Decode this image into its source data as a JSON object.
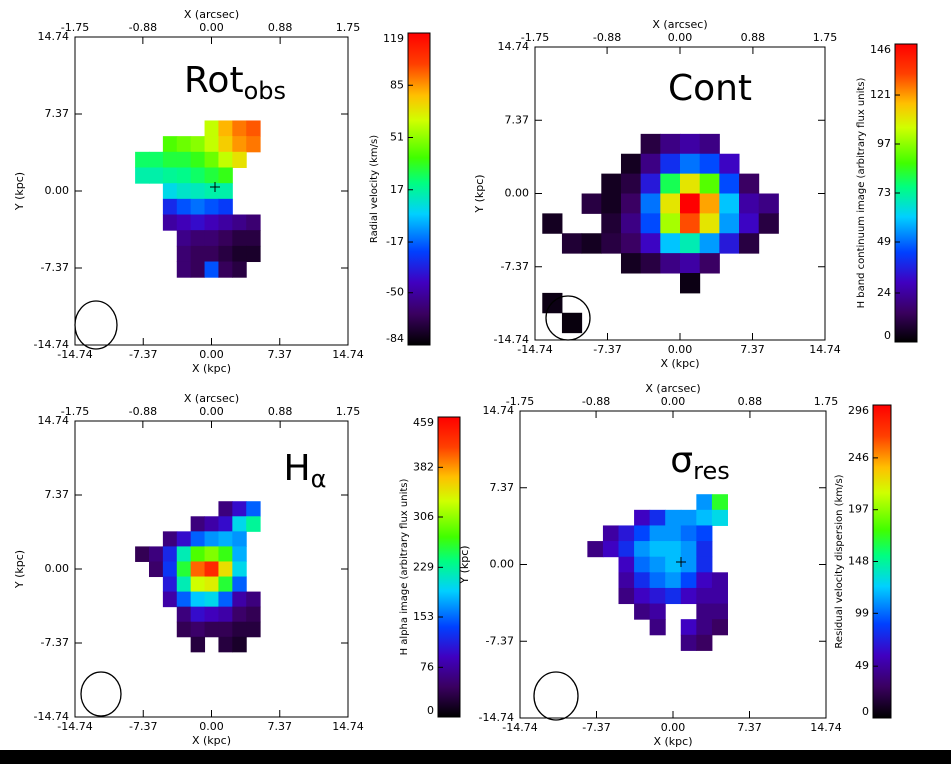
{
  "chart_data": [
    {
      "type": "heatmap",
      "title": "Rot",
      "title_sub": "obs",
      "x2label": "X (arcsec)",
      "xlabel": "X (kpc)",
      "ylabel": "Y (kpc)",
      "colorbar_label": "Radial velocity  (km/s)",
      "xlim": [
        -14.74,
        14.74
      ],
      "ylim": [
        -14.74,
        14.74
      ],
      "x2lim": [
        -1.75,
        1.75
      ],
      "xticks": [
        -14.74,
        -7.37,
        {
          "value": 0,
          "label": "0.00"
        },
        7.37,
        14.74
      ],
      "yticks": [
        -14.74,
        -7.37,
        {
          "value": 0,
          "label": "0.00"
        },
        7.37,
        14.74
      ],
      "x2ticks": [
        -1.75,
        -0.88,
        {
          "value": 0,
          "label": "0.00"
        },
        0.88,
        1.75
      ],
      "zlim": [
        -84,
        119
      ],
      "zticks": [
        -84,
        -50,
        -17,
        17,
        51,
        85,
        119
      ],
      "x": [
        -7.5,
        -6,
        -4.5,
        -3,
        -1.5,
        0,
        1.5,
        3,
        4.5,
        6
      ],
      "y": [
        6,
        4.5,
        3,
        1.5,
        0,
        -1.5,
        -3,
        -4.5,
        -6,
        -7.5
      ],
      "z": [
        [
          null,
          null,
          null,
          null,
          null,
          60,
          80,
          90,
          95,
          null
        ],
        [
          null,
          null,
          40,
          45,
          50,
          60,
          75,
          85,
          90,
          null
        ],
        [
          25,
          25,
          30,
          30,
          35,
          45,
          60,
          70,
          null,
          null
        ],
        [
          15,
          15,
          18,
          20,
          25,
          30,
          35,
          null,
          null,
          null
        ],
        [
          null,
          null,
          5,
          10,
          12,
          15,
          15,
          null,
          null,
          null
        ],
        [
          null,
          null,
          -30,
          -20,
          -15,
          -20,
          -25,
          null,
          null,
          null
        ],
        [
          null,
          null,
          -50,
          -45,
          -40,
          -45,
          -50,
          -55,
          -60,
          null
        ],
        [
          null,
          null,
          null,
          -55,
          -60,
          -60,
          -65,
          -70,
          -70,
          null
        ],
        [
          null,
          null,
          null,
          -60,
          -65,
          -65,
          -70,
          -75,
          -75,
          null
        ],
        [
          null,
          null,
          null,
          -60,
          -65,
          -20,
          -65,
          -70,
          null,
          null
        ]
      ]
    },
    {
      "type": "heatmap",
      "title": "Cont",
      "x2label": "X (arcsec)",
      "xlabel": "X (kpc)",
      "ylabel": "Y (kpc)",
      "colorbar_label": "H band continuum image  (arbitrary flux units)",
      "xlim": [
        -14.74,
        14.74
      ],
      "ylim": [
        -14.74,
        14.74
      ],
      "x2lim": [
        -1.75,
        1.75
      ],
      "xticks": [
        -14.74,
        -7.37,
        {
          "value": 0,
          "label": "0.00"
        },
        7.37,
        14.74
      ],
      "yticks": [
        -14.74,
        -7.37,
        {
          "value": 0,
          "label": "0.00"
        },
        7.37,
        14.74
      ],
      "x2ticks": [
        -1.75,
        -0.88,
        {
          "value": 0,
          "label": "0.00"
        },
        0.88,
        1.75
      ],
      "zlim": [
        0,
        146
      ],
      "zticks": [
        0,
        24,
        49,
        73,
        97,
        121,
        146
      ],
      "x": [
        -13,
        -11,
        -9,
        -7,
        -5,
        -3,
        -1,
        1,
        3,
        5,
        7,
        9,
        11,
        13
      ],
      "y": [
        5,
        3,
        1,
        -1,
        -3,
        -5,
        -7,
        -9,
        -11,
        -13
      ],
      "z": [
        [
          null,
          null,
          null,
          null,
          null,
          10,
          20,
          25,
          20,
          null,
          null,
          null,
          null,
          null
        ],
        [
          null,
          null,
          null,
          null,
          5,
          20,
          40,
          50,
          45,
          30,
          null,
          null,
          null,
          null
        ],
        [
          null,
          null,
          null,
          5,
          10,
          35,
          80,
          110,
          90,
          45,
          15,
          null,
          null,
          null
        ],
        [
          null,
          null,
          10,
          5,
          15,
          50,
          110,
          146,
          120,
          60,
          25,
          20,
          null,
          null
        ],
        [
          5,
          null,
          null,
          8,
          20,
          45,
          100,
          130,
          110,
          55,
          30,
          10,
          null,
          null
        ],
        [
          null,
          8,
          5,
          10,
          15,
          30,
          60,
          70,
          55,
          35,
          10,
          null,
          null,
          null
        ],
        [
          null,
          null,
          null,
          null,
          5,
          10,
          20,
          25,
          15,
          null,
          null,
          null,
          null,
          null
        ],
        [
          null,
          null,
          null,
          null,
          null,
          null,
          null,
          3,
          null,
          null,
          null,
          null,
          null,
          null
        ],
        [
          3,
          null,
          null,
          null,
          null,
          null,
          null,
          null,
          null,
          null,
          null,
          null,
          null,
          null
        ],
        [
          null,
          2,
          null,
          null,
          null,
          null,
          null,
          null,
          null,
          null,
          null,
          null,
          null,
          null
        ]
      ]
    },
    {
      "type": "heatmap",
      "title": "H",
      "title_sub": "α",
      "x2label": "X (arcsec)",
      "xlabel": "X (kpc)",
      "ylabel": "Y (kpc)",
      "colorbar_label": "H alpha image  (arbitrary flux units)",
      "xlim": [
        -14.74,
        14.74
      ],
      "ylim": [
        -14.74,
        14.74
      ],
      "x2lim": [
        -1.75,
        1.75
      ],
      "xticks": [
        -14.74,
        -7.37,
        {
          "value": 0,
          "label": "0.00"
        },
        7.37,
        14.74
      ],
      "yticks": [
        -14.74,
        -7.37,
        {
          "value": 0,
          "label": "0.00"
        },
        7.37,
        14.74
      ],
      "x2ticks": [
        -1.75,
        -0.88,
        {
          "value": 0,
          "label": "0.00"
        },
        0.88,
        1.75
      ],
      "zlim": [
        0,
        459
      ],
      "zticks": [
        0,
        76,
        153,
        229,
        306,
        382,
        459
      ],
      "x": [
        -7.5,
        -6,
        -4.5,
        -3,
        -1.5,
        0,
        1.5,
        3,
        4.5,
        6
      ],
      "y": [
        6,
        4.5,
        3,
        1.5,
        0,
        -1.5,
        -3,
        -4.5,
        -6,
        -7.5
      ],
      "z": [
        [
          null,
          null,
          null,
          null,
          null,
          null,
          60,
          100,
          150,
          null
        ],
        [
          null,
          null,
          null,
          null,
          60,
          80,
          100,
          200,
          230,
          null
        ],
        [
          null,
          null,
          60,
          100,
          150,
          170,
          180,
          170,
          null,
          null
        ],
        [
          40,
          60,
          120,
          220,
          280,
          300,
          270,
          180,
          null,
          null
        ],
        [
          null,
          50,
          130,
          260,
          400,
          430,
          350,
          200,
          null,
          null
        ],
        [
          null,
          null,
          110,
          220,
          330,
          340,
          260,
          150,
          null,
          null
        ],
        [
          null,
          null,
          80,
          150,
          190,
          200,
          150,
          80,
          60,
          null
        ],
        [
          null,
          null,
          null,
          60,
          100,
          90,
          80,
          50,
          40,
          null
        ],
        [
          null,
          null,
          null,
          40,
          50,
          40,
          40,
          30,
          30,
          null
        ],
        [
          null,
          null,
          null,
          null,
          30,
          null,
          30,
          20,
          null,
          null
        ]
      ]
    },
    {
      "type": "heatmap",
      "title": "σ",
      "title_sub": "res",
      "x2label": "X (arcsec)",
      "xlabel": "X (kpc)",
      "ylabel": "Y (kpc)",
      "colorbar_label": "Residual velocity dispersion  (km/s)",
      "xlim": [
        -14.74,
        14.74
      ],
      "ylim": [
        -14.74,
        14.74
      ],
      "x2lim": [
        -1.75,
        1.75
      ],
      "xticks": [
        -14.74,
        -7.37,
        {
          "value": 0,
          "label": "0.00"
        },
        7.37,
        14.74
      ],
      "yticks": [
        -14.74,
        -7.37,
        {
          "value": 0,
          "label": "0.00"
        },
        7.37,
        14.74
      ],
      "x2ticks": [
        -1.75,
        -0.88,
        {
          "value": 0,
          "label": "0.00"
        },
        0.88,
        1.75
      ],
      "zlim": [
        0,
        296
      ],
      "zticks": [
        0,
        49,
        99,
        148,
        197,
        246,
        296
      ],
      "x": [
        -7.5,
        -6,
        -4.5,
        -3,
        -1.5,
        0,
        1.5,
        3,
        4.5,
        6
      ],
      "y": [
        6,
        4.5,
        3,
        1.5,
        0,
        -1.5,
        -3,
        -4.5,
        -6,
        -7.5
      ],
      "z": [
        [
          null,
          null,
          null,
          null,
          null,
          null,
          null,
          110,
          170,
          null
        ],
        [
          null,
          null,
          null,
          60,
          80,
          110,
          110,
          120,
          130,
          null
        ],
        [
          null,
          50,
          70,
          90,
          110,
          110,
          100,
          90,
          null,
          null
        ],
        [
          40,
          60,
          80,
          110,
          120,
          120,
          110,
          80,
          null,
          null
        ],
        [
          null,
          null,
          60,
          100,
          110,
          120,
          110,
          80,
          null,
          null
        ],
        [
          null,
          null,
          50,
          80,
          100,
          110,
          90,
          60,
          50,
          null
        ],
        [
          null,
          null,
          40,
          60,
          70,
          80,
          60,
          50,
          50,
          null
        ],
        [
          null,
          null,
          null,
          40,
          50,
          null,
          null,
          40,
          40,
          null
        ],
        [
          null,
          null,
          null,
          null,
          40,
          null,
          60,
          40,
          30,
          null
        ],
        [
          null,
          null,
          null,
          null,
          null,
          null,
          40,
          30,
          null,
          null
        ]
      ]
    }
  ]
}
